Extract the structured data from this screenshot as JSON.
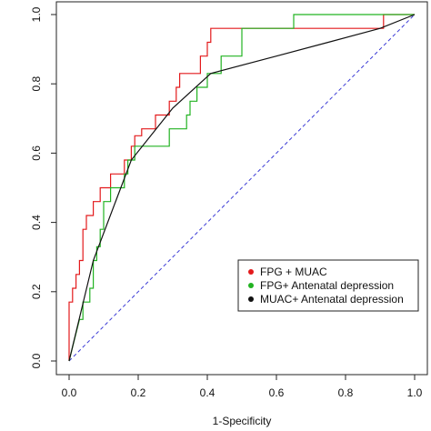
{
  "chart_data": {
    "type": "line",
    "title": "",
    "xlabel": "1-Specificity",
    "ylabel": "",
    "xlim": [
      0,
      1
    ],
    "ylim": [
      0,
      1
    ],
    "x_ticks": [
      "0.0",
      "0.2",
      "0.4",
      "0.6",
      "0.8",
      "1.0"
    ],
    "y_ticks": [
      "0.0",
      "0.2",
      "0.4",
      "0.6",
      "0.8",
      "1.0"
    ],
    "grid": false,
    "legend_position": "bottom-right",
    "reference_line": {
      "x": [
        0,
        1
      ],
      "y": [
        0,
        1
      ],
      "color": "#3b3bd6",
      "style": "dashed"
    },
    "series": [
      {
        "name": "FPG + MUAC",
        "color": "#e31a1c",
        "x": [
          0.0,
          0.0,
          0.01,
          0.01,
          0.02,
          0.02,
          0.03,
          0.03,
          0.04,
          0.04,
          0.05,
          0.05,
          0.07,
          0.07,
          0.09,
          0.09,
          0.12,
          0.12,
          0.16,
          0.16,
          0.18,
          0.18,
          0.19,
          0.19,
          0.21,
          0.21,
          0.25,
          0.25,
          0.29,
          0.29,
          0.31,
          0.31,
          0.32,
          0.32,
          0.33,
          0.33,
          0.38,
          0.38,
          0.4,
          0.4,
          0.41,
          0.41,
          0.43,
          0.43,
          0.48,
          0.48,
          0.91,
          0.91,
          1.0
        ],
        "y": [
          0.0,
          0.17,
          0.17,
          0.21,
          0.21,
          0.25,
          0.25,
          0.29,
          0.29,
          0.38,
          0.38,
          0.42,
          0.42,
          0.46,
          0.46,
          0.5,
          0.5,
          0.54,
          0.54,
          0.58,
          0.58,
          0.62,
          0.62,
          0.65,
          0.65,
          0.67,
          0.67,
          0.71,
          0.71,
          0.75,
          0.75,
          0.79,
          0.79,
          0.83,
          0.83,
          0.83,
          0.83,
          0.88,
          0.88,
          0.92,
          0.92,
          0.96,
          0.96,
          0.96,
          0.96,
          0.96,
          0.96,
          1.0,
          1.0
        ]
      },
      {
        "name": "FPG+ Antenatal depression",
        "color": "#22b322",
        "x": [
          0.0,
          0.03,
          0.04,
          0.04,
          0.06,
          0.06,
          0.07,
          0.07,
          0.08,
          0.08,
          0.09,
          0.09,
          0.1,
          0.1,
          0.12,
          0.12,
          0.16,
          0.16,
          0.17,
          0.17,
          0.19,
          0.19,
          0.2,
          0.2,
          0.29,
          0.29,
          0.34,
          0.34,
          0.35,
          0.35,
          0.37,
          0.37,
          0.4,
          0.4,
          0.44,
          0.44,
          0.5,
          0.5,
          0.65,
          0.65,
          1.0
        ],
        "y": [
          0.0,
          0.12,
          0.12,
          0.17,
          0.17,
          0.21,
          0.21,
          0.29,
          0.29,
          0.33,
          0.33,
          0.38,
          0.38,
          0.46,
          0.46,
          0.5,
          0.5,
          0.54,
          0.54,
          0.58,
          0.58,
          0.62,
          0.62,
          0.62,
          0.62,
          0.67,
          0.67,
          0.71,
          0.71,
          0.75,
          0.75,
          0.79,
          0.79,
          0.83,
          0.83,
          0.88,
          0.88,
          0.96,
          0.96,
          1.0,
          1.0
        ]
      },
      {
        "name": "MUAC+ Antenatal depression",
        "color": "#111111",
        "x": [
          0.0,
          0.07,
          0.18,
          0.3,
          0.41,
          0.6,
          0.75,
          0.9,
          1.0
        ],
        "y": [
          0.0,
          0.29,
          0.58,
          0.73,
          0.83,
          0.88,
          0.92,
          0.96,
          1.0
        ]
      }
    ]
  }
}
